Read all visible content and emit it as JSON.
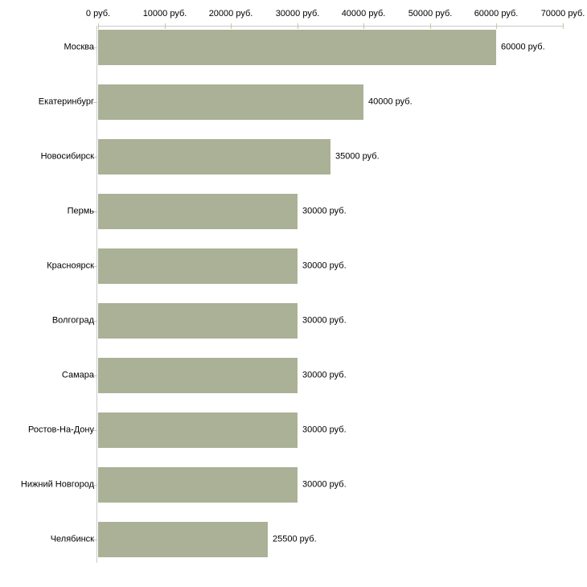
{
  "chart_data": {
    "type": "bar",
    "orientation": "horizontal",
    "title": "",
    "unit": "руб.",
    "categories": [
      "Москва",
      "Екатеринбург",
      "Новосибирск",
      "Пермь",
      "Красноярск",
      "Волгоград",
      "Самара",
      "Ростов-На-Дону",
      "Нижний Новгород",
      "Челябинск"
    ],
    "values": [
      60000,
      40000,
      35000,
      30000,
      30000,
      30000,
      30000,
      30000,
      30000,
      25500
    ],
    "value_labels": [
      "60000 руб.",
      "40000 руб.",
      "35000 руб.",
      "30000 руб.",
      "30000 руб.",
      "30000 руб.",
      "30000 руб.",
      "30000 руб.",
      "30000 руб.",
      "25500 руб."
    ],
    "x_axis": {
      "position": "top",
      "min": 0,
      "max": 70000,
      "ticks": [
        0,
        10000,
        20000,
        30000,
        40000,
        50000,
        60000,
        70000
      ],
      "tick_labels": [
        "0 руб.",
        "10000 руб.",
        "20000 руб.",
        "30000 руб.",
        "40000 руб.",
        "50000 руб.",
        "60000 руб.",
        "70000 руб."
      ]
    },
    "grid": false,
    "legend": false,
    "colors": {
      "bar": "#aab196",
      "axis_line": "#c9c9c9",
      "tick_mark": "#c8c89e",
      "text": "#000000",
      "background": "#ffffff"
    }
  }
}
